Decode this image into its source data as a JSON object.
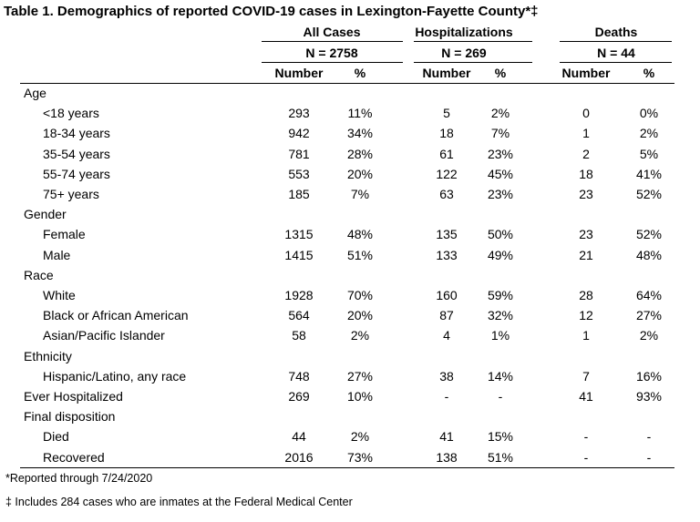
{
  "title": "Table 1. Demographics of reported COVID-19 cases in Lexington-Fayette County*‡",
  "groups": [
    {
      "name": "All Cases",
      "n": "N = 2758",
      "col1": "Number",
      "col2": "%"
    },
    {
      "name": "Hospitalizations",
      "n": "N = 269",
      "col1": "Number",
      "col2": "%"
    },
    {
      "name": "Deaths",
      "n": "N = 44",
      "col1": "Number",
      "col2": "%"
    }
  ],
  "rows": [
    {
      "label": "Age",
      "indent": 0,
      "values": []
    },
    {
      "label": "<18 years",
      "indent": 1,
      "values": [
        "293",
        "11%",
        "5",
        "2%",
        "0",
        "0%"
      ]
    },
    {
      "label": "18-34 years",
      "indent": 1,
      "values": [
        "942",
        "34%",
        "18",
        "7%",
        "1",
        "2%"
      ]
    },
    {
      "label": "35-54 years",
      "indent": 1,
      "values": [
        "781",
        "28%",
        "61",
        "23%",
        "2",
        "5%"
      ]
    },
    {
      "label": "55-74 years",
      "indent": 1,
      "values": [
        "553",
        "20%",
        "122",
        "45%",
        "18",
        "41%"
      ]
    },
    {
      "label": "75+ years",
      "indent": 1,
      "values": [
        "185",
        "7%",
        "63",
        "23%",
        "23",
        "52%"
      ]
    },
    {
      "label": "Gender",
      "indent": 0,
      "values": []
    },
    {
      "label": "Female",
      "indent": 1,
      "values": [
        "1315",
        "48%",
        "135",
        "50%",
        "23",
        "52%"
      ]
    },
    {
      "label": "Male",
      "indent": 1,
      "values": [
        "1415",
        "51%",
        "133",
        "49%",
        "21",
        "48%"
      ]
    },
    {
      "label": "Race",
      "indent": 0,
      "values": []
    },
    {
      "label": "White",
      "indent": 1,
      "values": [
        "1928",
        "70%",
        "160",
        "59%",
        "28",
        "64%"
      ]
    },
    {
      "label": "Black or African American",
      "indent": 1,
      "values": [
        "564",
        "20%",
        "87",
        "32%",
        "12",
        "27%"
      ]
    },
    {
      "label": "Asian/Pacific Islander",
      "indent": 1,
      "values": [
        "58",
        "2%",
        "4",
        "1%",
        "1",
        "2%"
      ]
    },
    {
      "label": "Ethnicity",
      "indent": 0,
      "values": []
    },
    {
      "label": "Hispanic/Latino, any race",
      "indent": 1,
      "values": [
        "748",
        "27%",
        "38",
        "14%",
        "7",
        "16%"
      ]
    },
    {
      "label": "Ever Hospitalized",
      "indent": 0,
      "values": [
        "269",
        "10%",
        "-",
        "-",
        "41",
        "93%"
      ]
    },
    {
      "label": "Final disposition",
      "indent": 0,
      "values": []
    },
    {
      "label": "Died",
      "indent": 1,
      "values": [
        "44",
        "2%",
        "41",
        "15%",
        "-",
        "-"
      ]
    },
    {
      "label": "Recovered",
      "indent": 1,
      "values": [
        "2016",
        "73%",
        "138",
        "51%",
        "-",
        "-"
      ]
    }
  ],
  "footnotes": [
    "*Reported through 7/24/2020",
    "‡ Includes 284 cases who are inmates at the Federal Medical Center"
  ]
}
